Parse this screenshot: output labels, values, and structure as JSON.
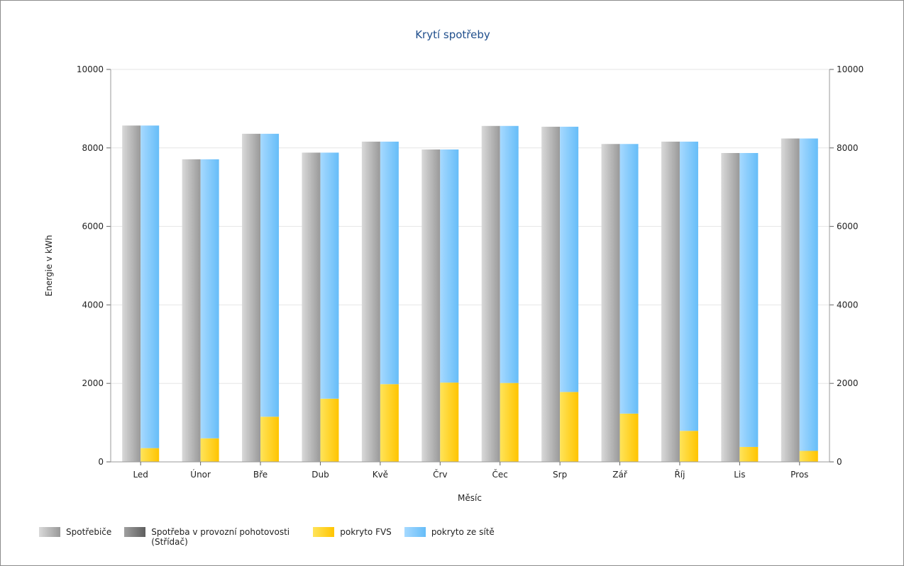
{
  "chart_data": {
    "type": "bar",
    "title": "Krytí spotřeby",
    "xlabel": "Měsíc",
    "ylabel": "Energie v kWh",
    "ylim": [
      0,
      10000
    ],
    "yticks": [
      0,
      2000,
      4000,
      6000,
      8000,
      10000
    ],
    "grid": true,
    "legend_position": "bottom-left",
    "categories": [
      "Led",
      "Únor",
      "Bře",
      "Dub",
      "Kvě",
      "Črv",
      "Čec",
      "Srp",
      "Zář",
      "Říj",
      "Lis",
      "Pros"
    ],
    "series": [
      {
        "name": "Spotřebiče",
        "color": "#a9a9a9",
        "stack": "consumption",
        "values": [
          8570,
          7710,
          8360,
          7880,
          8160,
          7960,
          8560,
          8540,
          8100,
          8160,
          7870,
          8240
        ]
      },
      {
        "name": "Spotřeba v provozní pohotovosti (Střídač)",
        "color": "#7a7a7a",
        "stack": "consumption",
        "values": [
          0,
          0,
          0,
          0,
          0,
          0,
          0,
          0,
          0,
          0,
          0,
          0
        ]
      },
      {
        "name": "pokryto FVS",
        "color": "#ffd000",
        "stack": "coverage",
        "values": [
          350,
          600,
          1150,
          1610,
          1980,
          2020,
          2010,
          1780,
          1230,
          790,
          380,
          280
        ]
      },
      {
        "name": "pokryto ze sítě",
        "color": "#7fc7fb",
        "stack": "coverage",
        "values": [
          8220,
          7110,
          7210,
          6270,
          6180,
          5940,
          6550,
          6760,
          6870,
          7370,
          7490,
          7960
        ]
      }
    ]
  },
  "legend": [
    {
      "label": "Spotřebiče",
      "color": "#a9a9a9",
      "icon": "gray-gradient-swatch"
    },
    {
      "label": "Spotřeba v provozní pohotovosti (Střídač)",
      "color": "#7a7a7a",
      "icon": "dark-gray-swatch"
    },
    {
      "label": "pokryto FVS",
      "color": "#ffd000",
      "icon": "yellow-swatch"
    },
    {
      "label": "pokryto ze sítě",
      "color": "#7fc7fb",
      "icon": "blue-swatch"
    }
  ]
}
